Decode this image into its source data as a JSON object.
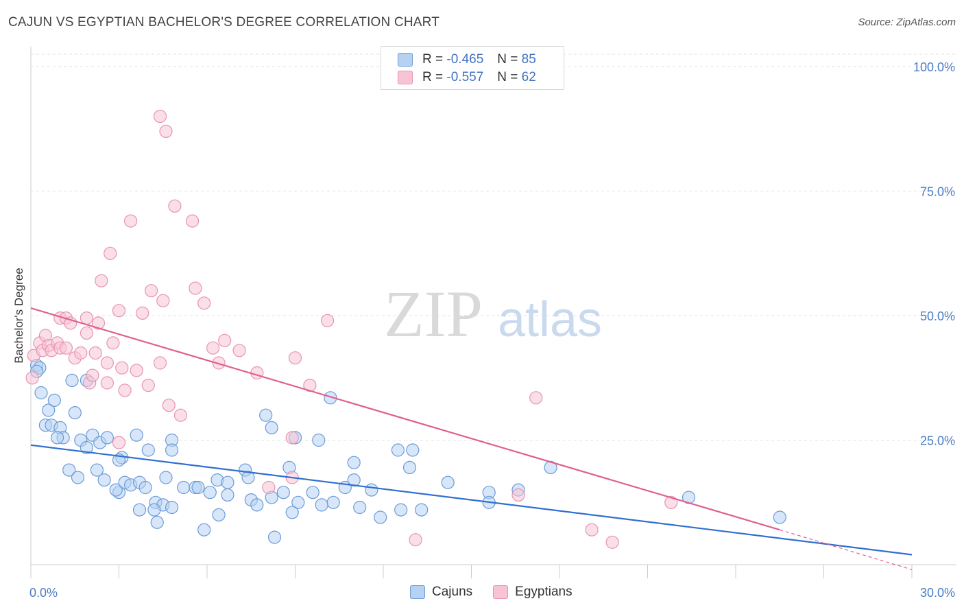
{
  "header": {
    "title": "CAJUN VS EGYPTIAN BACHELOR'S DEGREE CORRELATION CHART",
    "source": "Source: ZipAtlas.com"
  },
  "watermark": {
    "zip": "ZIP",
    "atlas": "atlas"
  },
  "legend": {
    "rows": [
      {
        "r_label": "R =",
        "r_value": "-0.465",
        "n_label": "N =",
        "n_value": "85"
      },
      {
        "r_label": "R =",
        "r_value": "-0.557",
        "n_label": "N =",
        "n_value": "62"
      }
    ]
  },
  "bottom_legend": {
    "cajuns": "Cajuns",
    "egyptians": "Egyptians"
  },
  "colors": {
    "cajun_fill": "#b7d1f2",
    "cajun_stroke": "#6b9bd6",
    "cajun_line": "#2f6fd0",
    "egypt_fill": "#f8c4d5",
    "egypt_stroke": "#e893b2",
    "egypt_line": "#e0608c",
    "axis_text": "#4a7cc4"
  },
  "chart_data": {
    "type": "scatter",
    "title": "CAJUN VS EGYPTIAN BACHELOR'S DEGREE CORRELATION CHART",
    "xlabel": "",
    "ylabel": "Bachelor's Degree",
    "xlim": [
      0,
      30
    ],
    "ylim": [
      0,
      100
    ],
    "x_tick_labels": [
      "0.0%",
      "30.0%"
    ],
    "y_tick_labels": [
      "100.0%",
      "75.0%",
      "50.0%",
      "25.0%"
    ],
    "y_ticks": [
      100,
      75,
      50,
      25
    ],
    "grid": true,
    "legend_position": "top-center",
    "series": [
      {
        "name": "Cajuns",
        "r": -0.465,
        "n": 85,
        "trend": {
          "x": [
            0,
            30
          ],
          "y": [
            24.0,
            2.0
          ]
        },
        "points": [
          [
            0.2,
            40
          ],
          [
            0.3,
            39.5
          ],
          [
            0.2,
            38.8
          ],
          [
            0.35,
            34.5
          ],
          [
            0.6,
            31
          ],
          [
            0.5,
            28
          ],
          [
            0.7,
            28
          ],
          [
            0.8,
            33
          ],
          [
            1.0,
            27.5
          ],
          [
            1.1,
            25.5
          ],
          [
            0.9,
            25.5
          ],
          [
            1.4,
            37
          ],
          [
            1.5,
            30.5
          ],
          [
            1.9,
            37
          ],
          [
            1.7,
            25
          ],
          [
            2.1,
            26
          ],
          [
            1.9,
            23.5
          ],
          [
            2.35,
            24.5
          ],
          [
            2.6,
            25.5
          ],
          [
            3.1,
            21.5
          ],
          [
            3.0,
            21
          ],
          [
            3.6,
            26
          ],
          [
            4.0,
            23
          ],
          [
            4.8,
            25
          ],
          [
            4.8,
            23
          ],
          [
            1.3,
            19
          ],
          [
            1.6,
            17.5
          ],
          [
            2.25,
            19
          ],
          [
            2.5,
            17
          ],
          [
            3.0,
            14.5
          ],
          [
            2.9,
            15
          ],
          [
            3.2,
            16.5
          ],
          [
            3.4,
            16
          ],
          [
            3.7,
            16.5
          ],
          [
            3.9,
            15.5
          ],
          [
            4.6,
            17.5
          ],
          [
            4.25,
            12.5
          ],
          [
            4.5,
            12
          ],
          [
            4.8,
            11.5
          ],
          [
            5.2,
            15.5
          ],
          [
            5.6,
            15.5
          ],
          [
            5.7,
            15.5
          ],
          [
            6.1,
            14.5
          ],
          [
            6.35,
            17
          ],
          [
            6.7,
            14
          ],
          [
            6.7,
            16.5
          ],
          [
            7.3,
            19
          ],
          [
            7.4,
            17.5
          ],
          [
            7.5,
            13
          ],
          [
            7.7,
            12
          ],
          [
            8.0,
            30
          ],
          [
            8.2,
            27.5
          ],
          [
            8.2,
            13.5
          ],
          [
            8.6,
            14.5
          ],
          [
            8.8,
            19.5
          ],
          [
            9.0,
            25.5
          ],
          [
            9.1,
            12.5
          ],
          [
            9.6,
            14.5
          ],
          [
            9.8,
            25
          ],
          [
            9.9,
            12
          ],
          [
            10.3,
            12.5
          ],
          [
            10.7,
            15.5
          ],
          [
            10.2,
            33.5
          ],
          [
            11.0,
            17
          ],
          [
            11.0,
            20.5
          ],
          [
            11.2,
            11.5
          ],
          [
            11.6,
            15
          ],
          [
            11.9,
            9.5
          ],
          [
            12.5,
            23
          ],
          [
            12.6,
            11
          ],
          [
            12.9,
            19.5
          ],
          [
            13.0,
            23
          ],
          [
            13.3,
            11
          ],
          [
            14.2,
            16.5
          ],
          [
            15.6,
            14.5
          ],
          [
            15.6,
            12.5
          ],
          [
            16.6,
            15
          ],
          [
            17.7,
            19.5
          ],
          [
            22.4,
            13.5
          ],
          [
            25.5,
            9.5
          ],
          [
            3.7,
            11
          ],
          [
            4.2,
            11
          ],
          [
            4.3,
            8.5
          ],
          [
            5.9,
            7
          ],
          [
            6.4,
            10
          ],
          [
            8.3,
            5.5
          ],
          [
            8.9,
            10.5
          ]
        ]
      },
      {
        "name": "Egyptians",
        "r": -0.557,
        "n": 62,
        "trend": {
          "x": [
            0,
            25.5
          ],
          "y": [
            51.5,
            7.0
          ]
        },
        "trend_dashed": {
          "x": [
            25.5,
            30
          ],
          "y": [
            7.0,
            -1.0
          ]
        },
        "points": [
          [
            0.05,
            37.5
          ],
          [
            0.1,
            42
          ],
          [
            0.3,
            44.5
          ],
          [
            0.4,
            43
          ],
          [
            0.5,
            46
          ],
          [
            0.6,
            44
          ],
          [
            0.7,
            43
          ],
          [
            0.9,
            44.5
          ],
          [
            1.0,
            43.5
          ],
          [
            1.2,
            43.5
          ],
          [
            1.0,
            49.5
          ],
          [
            1.2,
            49.5
          ],
          [
            1.35,
            48.5
          ],
          [
            1.5,
            41.5
          ],
          [
            1.7,
            42.5
          ],
          [
            1.9,
            49.5
          ],
          [
            1.9,
            46.5
          ],
          [
            2.0,
            36.5
          ],
          [
            2.1,
            38
          ],
          [
            2.2,
            42.5
          ],
          [
            2.3,
            48.5
          ],
          [
            2.4,
            57
          ],
          [
            2.6,
            36.5
          ],
          [
            2.6,
            40.5
          ],
          [
            2.7,
            62.5
          ],
          [
            2.8,
            44.5
          ],
          [
            3.0,
            51
          ],
          [
            3.1,
            39.5
          ],
          [
            3.2,
            35
          ],
          [
            3.4,
            69
          ],
          [
            3.6,
            39
          ],
          [
            3.8,
            50.5
          ],
          [
            4.0,
            36
          ],
          [
            4.1,
            55
          ],
          [
            4.4,
            40.5
          ],
          [
            4.4,
            90
          ],
          [
            4.5,
            53
          ],
          [
            4.6,
            87
          ],
          [
            4.7,
            32
          ],
          [
            4.9,
            72
          ],
          [
            5.1,
            30
          ],
          [
            5.5,
            69
          ],
          [
            5.6,
            55.5
          ],
          [
            5.9,
            52.5
          ],
          [
            6.2,
            43.5
          ],
          [
            6.4,
            40.5
          ],
          [
            6.6,
            45
          ],
          [
            7.1,
            43
          ],
          [
            7.7,
            38.5
          ],
          [
            8.1,
            15.5
          ],
          [
            8.9,
            17.5
          ],
          [
            8.9,
            25.5
          ],
          [
            9.0,
            41.5
          ],
          [
            9.5,
            36
          ],
          [
            10.1,
            49
          ],
          [
            13.1,
            5
          ],
          [
            16.6,
            14
          ],
          [
            17.2,
            33.5
          ],
          [
            19.1,
            7
          ],
          [
            19.8,
            4.5
          ],
          [
            21.8,
            12.5
          ],
          [
            3.0,
            24.5
          ]
        ]
      }
    ]
  }
}
